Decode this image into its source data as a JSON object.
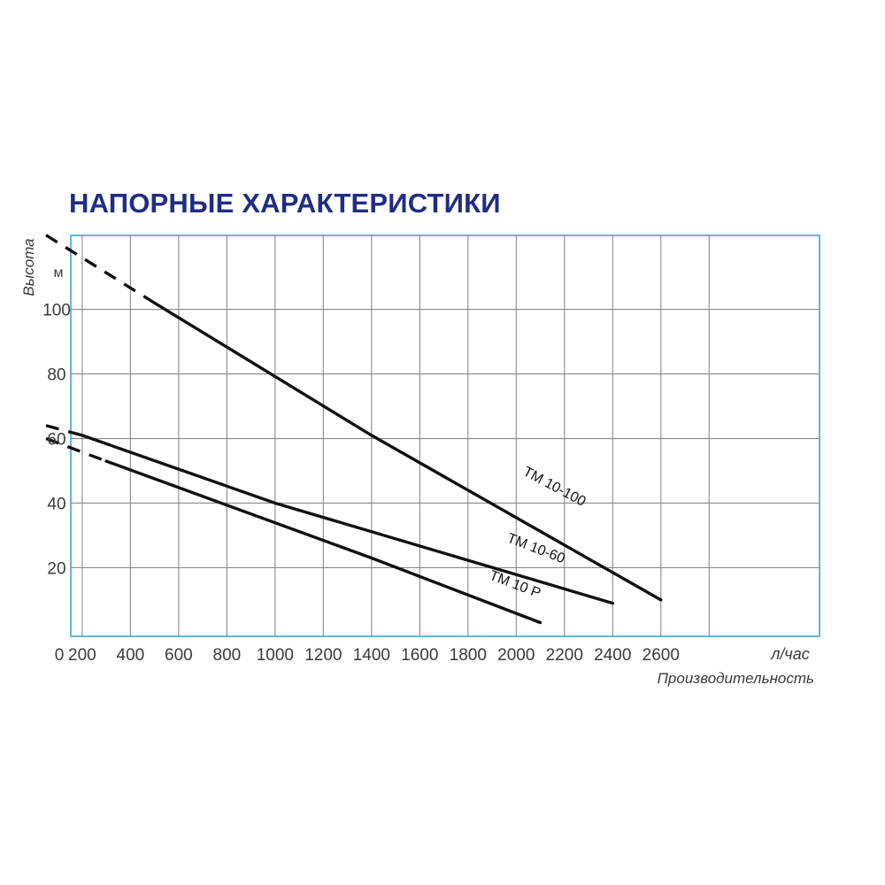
{
  "chart_data": {
    "type": "line",
    "title": "НАПОРНЫЕ ХАРАКТЕРИСТИКИ",
    "ylabel": "Высота",
    "yunit": "м",
    "xlabel": "Производительность",
    "xunit": "л/час",
    "xlim": [
      50,
      3100
    ],
    "ylim": [
      0,
      123
    ],
    "x_ticks": [
      0,
      200,
      400,
      600,
      800,
      1000,
      1200,
      1400,
      1600,
      1800,
      2000,
      2200,
      2400,
      2600
    ],
    "y_ticks": [
      20,
      40,
      60,
      80,
      100
    ],
    "grid": true,
    "colors": {
      "title": "#1f2d84",
      "frame": "#3aa6d0",
      "grid": "#8a8a8a",
      "line": "#111111",
      "text": "#3a3a3a"
    },
    "series": [
      {
        "name": "ТМ 10-100",
        "dashed": [
          {
            "x": 50,
            "y": 123
          },
          {
            "x": 500,
            "y": 102
          }
        ],
        "solid": [
          {
            "x": 500,
            "y": 102
          },
          {
            "x": 1400,
            "y": 61
          },
          {
            "x": 2600,
            "y": 10
          }
        ]
      },
      {
        "name": "ТМ 10-60",
        "dashed": [
          {
            "x": 50,
            "y": 64
          },
          {
            "x": 200,
            "y": 61
          }
        ],
        "solid": [
          {
            "x": 200,
            "y": 61
          },
          {
            "x": 1000,
            "y": 40
          },
          {
            "x": 2400,
            "y": 9
          }
        ]
      },
      {
        "name": "ТМ 10 Р",
        "dashed": [
          {
            "x": 50,
            "y": 60
          },
          {
            "x": 300,
            "y": 53
          }
        ],
        "solid": [
          {
            "x": 300,
            "y": 53
          },
          {
            "x": 1400,
            "y": 23
          },
          {
            "x": 2100,
            "y": 3
          }
        ]
      }
    ]
  }
}
